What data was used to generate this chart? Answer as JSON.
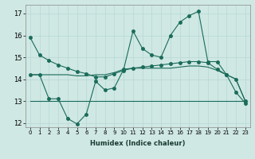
{
  "title": "",
  "xlabel": "Humidex (Indice chaleur)",
  "ylabel": "",
  "bg_color": "#cfe8e4",
  "line_color": "#1a6b5a",
  "grid_color": "#b8d8d4",
  "xlim": [
    -0.5,
    23.5
  ],
  "ylim": [
    11.8,
    17.4
  ],
  "yticks": [
    12,
    13,
    14,
    15,
    16,
    17
  ],
  "xticks": [
    0,
    1,
    2,
    3,
    4,
    5,
    6,
    7,
    8,
    9,
    10,
    11,
    12,
    13,
    14,
    15,
    16,
    17,
    18,
    19,
    20,
    21,
    22,
    23
  ],
  "line1_y": [
    15.9,
    15.1,
    14.85,
    14.65,
    14.5,
    14.35,
    14.25,
    14.1,
    14.1,
    14.25,
    14.4,
    14.5,
    14.55,
    14.6,
    14.65,
    14.7,
    14.75,
    14.8,
    14.8,
    14.75,
    14.45,
    14.2,
    14.0,
    13.0
  ],
  "line2_y": [
    14.2,
    14.2,
    13.1,
    13.1,
    12.2,
    11.95,
    12.4,
    13.9,
    13.5,
    13.6,
    14.45,
    16.2,
    15.4,
    15.1,
    15.0,
    16.0,
    16.6,
    16.9,
    17.1,
    14.8,
    14.8,
    14.2,
    13.4,
    12.9
  ],
  "line3_y": [
    14.2,
    14.2,
    14.2,
    14.2,
    14.2,
    14.15,
    14.15,
    14.2,
    14.2,
    14.3,
    14.45,
    14.5,
    14.5,
    14.5,
    14.5,
    14.5,
    14.55,
    14.6,
    14.6,
    14.55,
    14.4,
    14.2,
    14.0,
    13.0
  ],
  "line4_y": [
    13.0,
    13.0,
    13.0,
    13.0,
    13.0,
    13.0,
    13.0,
    13.0,
    13.0,
    13.0,
    13.0,
    13.0,
    13.0,
    13.0,
    13.0,
    13.0,
    13.0,
    13.0,
    13.0,
    13.0,
    13.0,
    13.0,
    13.0,
    13.0
  ],
  "markersize": 2.5,
  "linewidth": 0.8
}
